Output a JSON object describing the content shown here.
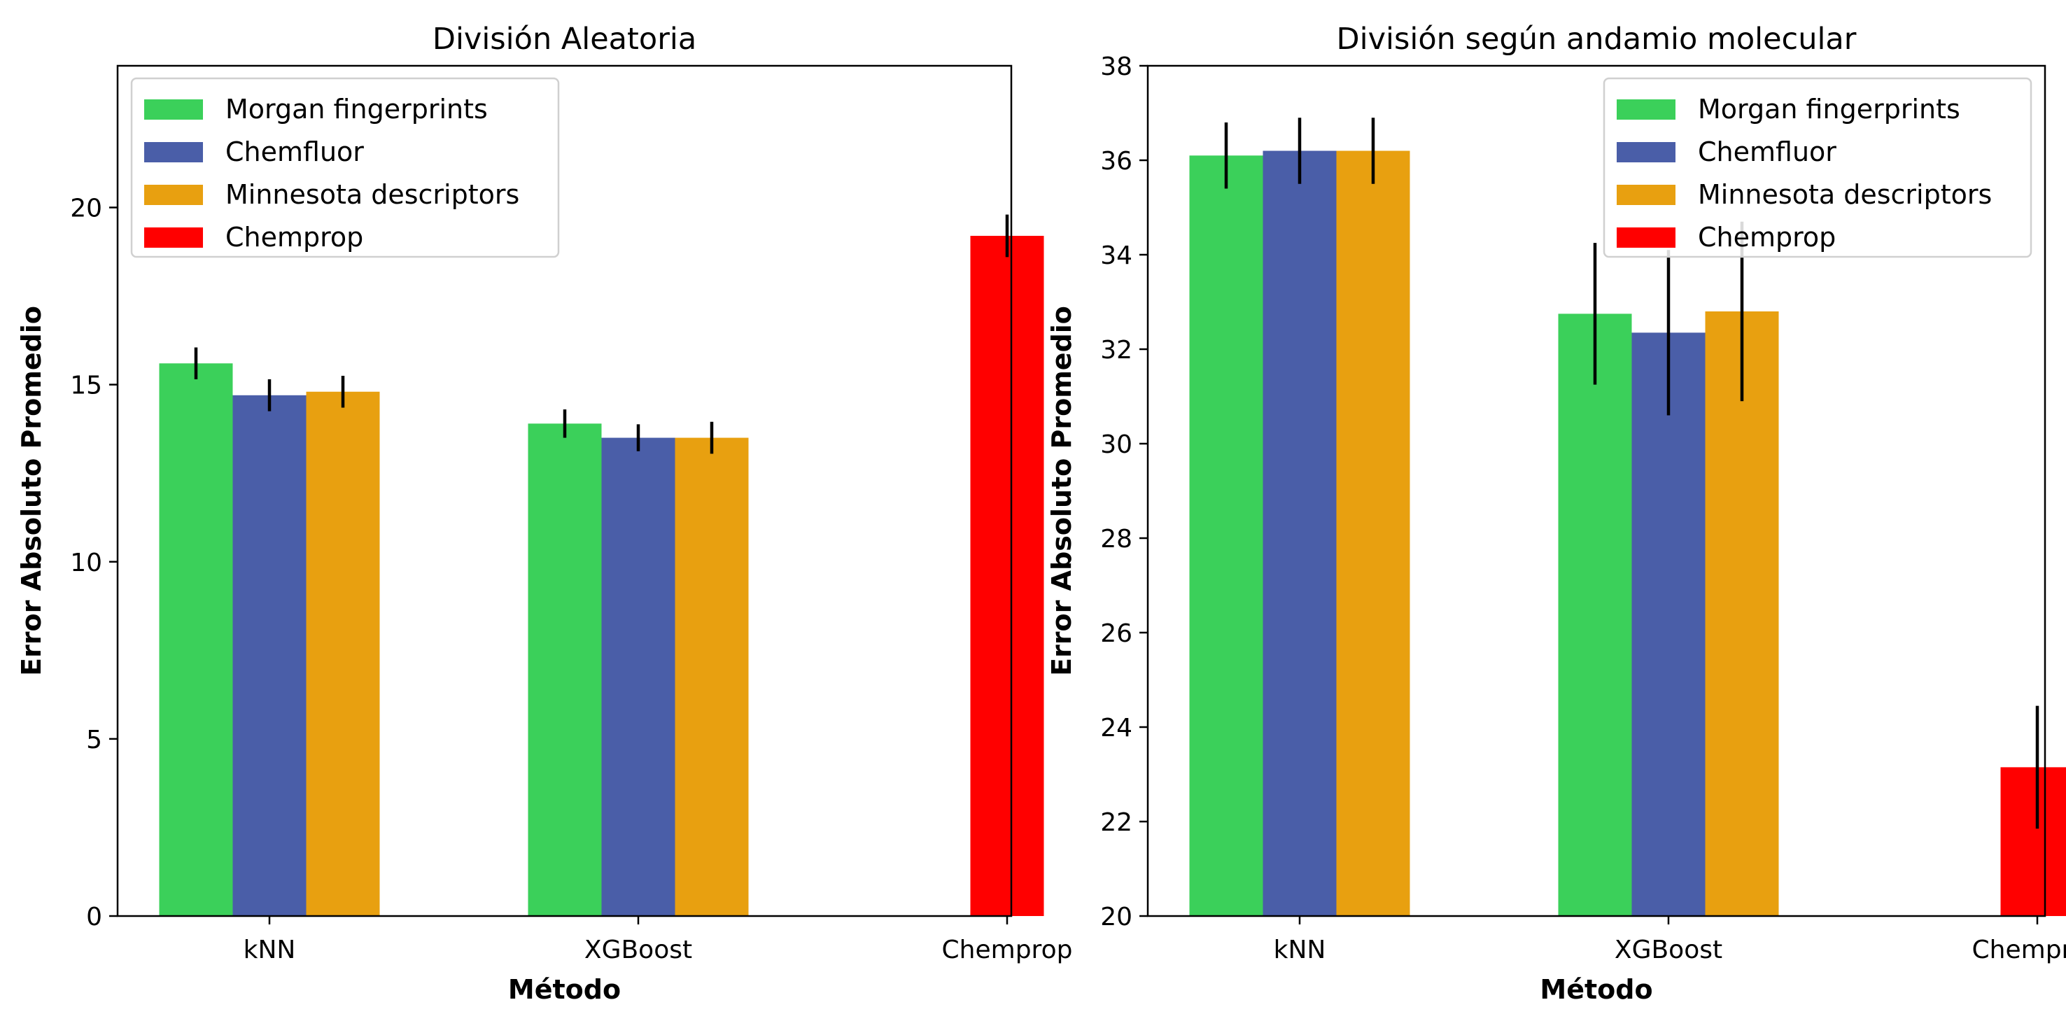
{
  "chart_data": [
    {
      "type": "bar",
      "title": "División Aleatoria",
      "xlabel": "Método",
      "ylabel": "Error Absoluto Promedio",
      "ylim": [
        0,
        24
      ],
      "yticks": [
        0,
        5,
        10,
        15,
        20
      ],
      "categories": [
        "kNN",
        "XGBoost",
        "Chemprop"
      ],
      "grid": false,
      "legend_position": "top-left",
      "series": [
        {
          "name": "Morgan fingerprints",
          "color": "#3bd05a",
          "values": [
            15.6,
            13.9,
            null
          ],
          "errors": [
            0.45,
            0.4,
            null
          ]
        },
        {
          "name": "Chemfluor",
          "color": "#4a5ea8",
          "values": [
            14.7,
            13.5,
            null
          ],
          "errors": [
            0.45,
            0.38,
            null
          ]
        },
        {
          "name": "Minnesota descriptors",
          "color": "#e8a010",
          "values": [
            14.8,
            13.5,
            null
          ],
          "errors": [
            0.45,
            0.45,
            null
          ]
        },
        {
          "name": "Chemprop",
          "color": "#ff0000",
          "values": [
            null,
            null,
            19.2
          ],
          "errors": [
            null,
            null,
            0.6
          ]
        }
      ]
    },
    {
      "type": "bar",
      "title": "División según andamio molecular",
      "xlabel": "Método",
      "ylabel": "Error Absoluto Promedio",
      "ylim": [
        20,
        38
      ],
      "yticks": [
        20,
        22,
        24,
        26,
        28,
        30,
        32,
        34,
        36,
        38
      ],
      "categories": [
        "kNN",
        "XGBoost",
        "Chemprop"
      ],
      "grid": false,
      "legend_position": "top-right",
      "series": [
        {
          "name": "Morgan fingerprints",
          "color": "#3bd05a",
          "values": [
            36.1,
            32.75,
            null
          ],
          "errors": [
            0.7,
            1.5,
            null
          ]
        },
        {
          "name": "Chemfluor",
          "color": "#4a5ea8",
          "values": [
            36.2,
            32.35,
            null
          ],
          "errors": [
            0.7,
            1.75,
            null
          ]
        },
        {
          "name": "Minnesota descriptors",
          "color": "#e8a010",
          "values": [
            36.2,
            32.8,
            null
          ],
          "errors": [
            0.7,
            1.9,
            null
          ]
        },
        {
          "name": "Chemprop",
          "color": "#ff0000",
          "values": [
            null,
            null,
            23.15
          ],
          "errors": [
            null,
            null,
            1.3
          ]
        }
      ]
    }
  ]
}
